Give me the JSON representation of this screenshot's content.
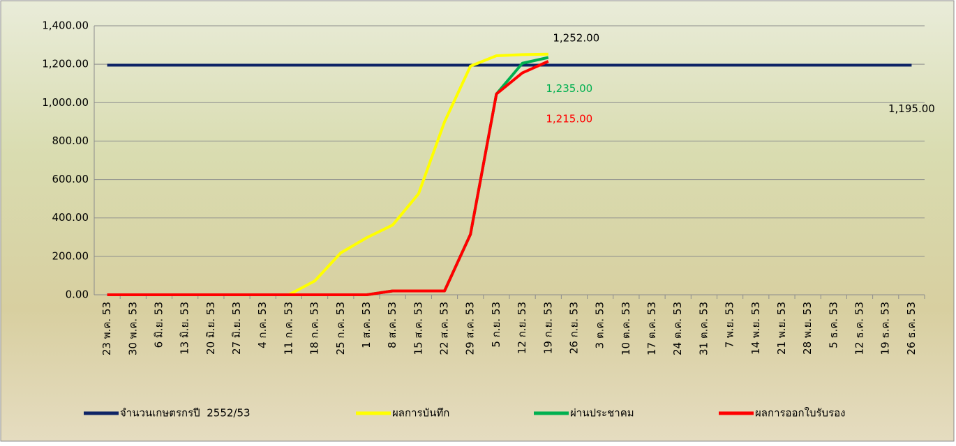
{
  "chart_data": {
    "type": "line",
    "categories": [
      "23 พ.ค. 53",
      "30 พ.ค. 53",
      "6 มิ.ย. 53",
      "13 มิ.ย. 53",
      "20 มิ.ย. 53",
      "27 มิ.ย. 53",
      "4 ก.ค. 53",
      "11 ก.ค. 53",
      "18 ก.ค. 53",
      "25 ก.ค. 53",
      "1 ส.ค. 53",
      "8 ส.ค. 53",
      "15 ส.ค. 53",
      "22 ส.ค. 53",
      "29 ส.ค. 53",
      "5 ก.ย. 53",
      "12 ก.ย. 53",
      "19 ก.ย. 53",
      "26 ก.ย. 53",
      "3 ต.ค. 53",
      "10 ต.ค. 53",
      "17 ต.ค. 53",
      "24 ต.ค. 53",
      "31 ต.ค. 53",
      "7 พ.ย. 53",
      "14 พ.ย. 53",
      "21 พ.ย. 53",
      "28 พ.ย. 53",
      "5 ธ.ค. 53",
      "12 ธ.ค. 53",
      "19 ธ.ค. 53",
      "26 ธ.ค. 53"
    ],
    "series": [
      {
        "name": "จำนวนเกษตรกรปี  2552/53",
        "color": "#0e2466",
        "values": [
          1195,
          1195,
          1195,
          1195,
          1195,
          1195,
          1195,
          1195,
          1195,
          1195,
          1195,
          1195,
          1195,
          1195,
          1195,
          1195,
          1195,
          1195,
          1195,
          1195,
          1195,
          1195,
          1195,
          1195,
          1195,
          1195,
          1195,
          1195,
          1195,
          1195,
          1195,
          1195
        ],
        "value_labels": [
          null,
          null,
          null,
          null,
          null,
          null,
          null,
          null,
          null,
          null,
          null,
          null,
          null,
          null,
          null,
          null,
          null,
          null,
          null,
          null,
          null,
          null,
          null,
          null,
          null,
          null,
          null,
          null,
          null,
          null,
          null,
          "1,195.00"
        ],
        "label_color": "#000000"
      },
      {
        "name": "ผลการบันทึก",
        "color": "#ffff00",
        "values": [
          0,
          0,
          0,
          0,
          0,
          0,
          0,
          0,
          72,
          218,
          297,
          363,
          526,
          900,
          1190,
          1244,
          1250,
          1252,
          null,
          null,
          null,
          null,
          null,
          null,
          null,
          null,
          null,
          null,
          null,
          null,
          null,
          null
        ],
        "value_labels": [
          null,
          null,
          null,
          null,
          null,
          null,
          null,
          null,
          null,
          null,
          null,
          null,
          null,
          null,
          null,
          null,
          null,
          "1,252.00",
          null,
          null,
          null,
          null,
          null,
          null,
          null,
          null,
          null,
          null,
          null,
          null,
          null,
          null
        ],
        "label_color": "#000000"
      },
      {
        "name": "ผ่านประชาคม",
        "color": "#00b050",
        "values": [
          0,
          0,
          0,
          0,
          0,
          0,
          0,
          0,
          0,
          0,
          0,
          20,
          20,
          20,
          315,
          1045,
          1205,
          1235,
          null,
          null,
          null,
          null,
          null,
          null,
          null,
          null,
          null,
          null,
          null,
          null,
          null,
          null
        ],
        "value_labels": [
          null,
          null,
          null,
          null,
          null,
          null,
          null,
          null,
          null,
          null,
          null,
          null,
          null,
          null,
          null,
          null,
          null,
          "1,235.00",
          null,
          null,
          null,
          null,
          null,
          null,
          null,
          null,
          null,
          null,
          null,
          null,
          null,
          null
        ],
        "label_color": "#00b050"
      },
      {
        "name": "ผลการออกใบรับรอง",
        "color": "#ff0000",
        "values": [
          0,
          0,
          0,
          0,
          0,
          0,
          0,
          0,
          0,
          0,
          0,
          20,
          20,
          20,
          315,
          1045,
          1155,
          1215,
          null,
          null,
          null,
          null,
          null,
          null,
          null,
          null,
          null,
          null,
          null,
          null,
          null,
          null
        ],
        "value_labels": [
          null,
          null,
          null,
          null,
          null,
          null,
          null,
          null,
          null,
          null,
          null,
          null,
          null,
          null,
          null,
          null,
          null,
          "1,215.00",
          null,
          null,
          null,
          null,
          null,
          null,
          null,
          null,
          null,
          null,
          null,
          null,
          null,
          null
        ],
        "label_color": "#ff0000"
      }
    ],
    "ylim": [
      0,
      1400
    ],
    "yticks": [
      {
        "value": 0,
        "label": "0.00"
      },
      {
        "value": 200,
        "label": "200.00"
      },
      {
        "value": 400,
        "label": "400.00"
      },
      {
        "value": 600,
        "label": "600.00"
      },
      {
        "value": 800,
        "label": "800.00"
      },
      {
        "value": 1000,
        "label": "1,000.00"
      },
      {
        "value": 1200,
        "label": "1,200.00"
      },
      {
        "value": 1400,
        "label": "1,400.00"
      }
    ],
    "grid": true,
    "legend": "bottom"
  }
}
